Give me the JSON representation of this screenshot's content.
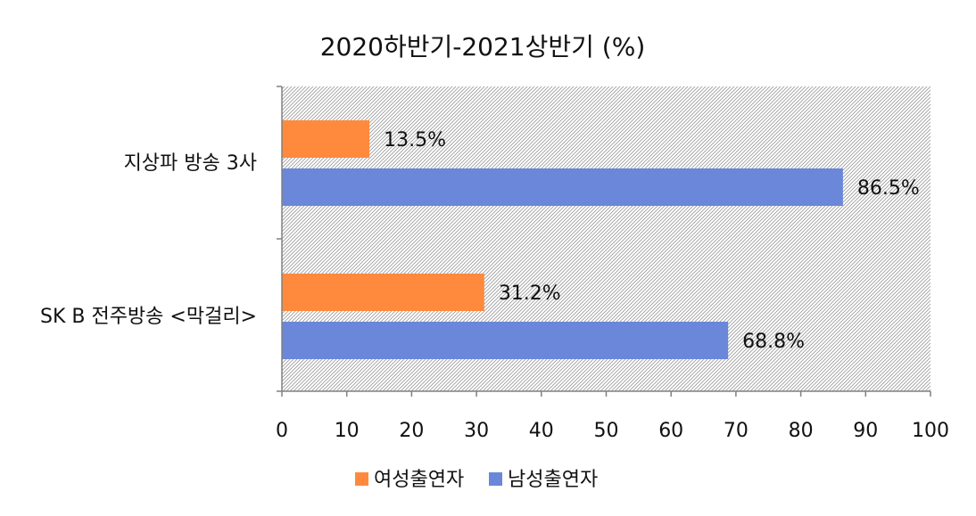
{
  "chart_data": {
    "type": "bar",
    "orientation": "horizontal",
    "title": "2020하반기-2021상반기 (%)",
    "categories": [
      "지상파 방송 3사",
      "SK B 전주방송 <막걸리>"
    ],
    "series": [
      {
        "name": "여성출연자",
        "color": "#FF8A3D",
        "values": [
          13.5,
          31.2
        ],
        "labels": [
          "13.5%",
          "31.2%"
        ]
      },
      {
        "name": "남성출연자",
        "color": "#6A87D9",
        "values": [
          86.5,
          68.8
        ],
        "labels": [
          "86.5%",
          "68.8%"
        ]
      }
    ],
    "xlim": [
      0,
      100
    ],
    "xticks": [
      0,
      10,
      20,
      30,
      40,
      50,
      60,
      70,
      80,
      90,
      100
    ],
    "xtick_labels": [
      "0",
      "10",
      "20",
      "30",
      "40",
      "50",
      "60",
      "70",
      "80",
      "90",
      "100"
    ],
    "plot_background": "diagonal-hatch",
    "grid": false,
    "legend_position": "bottom"
  }
}
